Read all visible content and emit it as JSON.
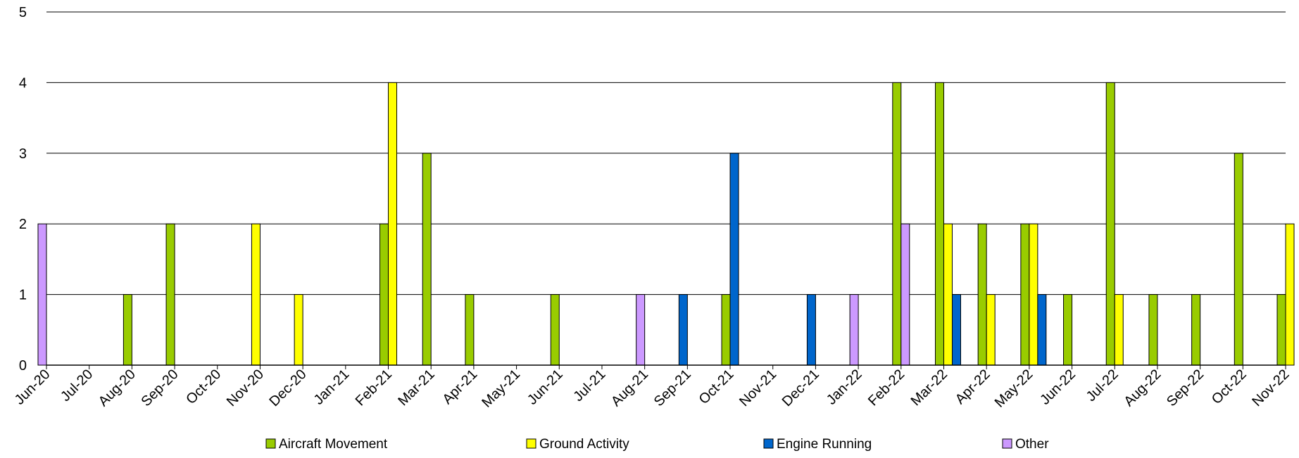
{
  "chart_data": {
    "type": "bar",
    "categories": [
      "Jun-20",
      "Jul-20",
      "Aug-20",
      "Sep-20",
      "Oct-20",
      "Nov-20",
      "Dec-20",
      "Jan-21",
      "Feb-21",
      "Mar-21",
      "Apr-21",
      "May-21",
      "Jun-21",
      "Jul-21",
      "Aug-21",
      "Sep-21",
      "Oct-21",
      "Nov-21",
      "Dec-21",
      "Jan-22",
      "Feb-22",
      "Mar-22",
      "Apr-22",
      "May-22",
      "Jun-22",
      "Jul-22",
      "Aug-22",
      "Sep-22",
      "Oct-22",
      "Nov-22"
    ],
    "series": [
      {
        "name": "Aircraft Movement",
        "color": "#99cc00",
        "values": [
          0,
          0,
          1,
          2,
          0,
          0,
          0,
          0,
          2,
          3,
          1,
          0,
          1,
          0,
          0,
          0,
          1,
          0,
          0,
          0,
          4,
          4,
          2,
          2,
          1,
          4,
          1,
          1,
          3,
          1
        ]
      },
      {
        "name": "Ground Activity",
        "color": "#ffff00",
        "values": [
          0,
          0,
          0,
          0,
          0,
          2,
          1,
          0,
          4,
          0,
          0,
          0,
          0,
          0,
          0,
          0,
          0,
          0,
          0,
          0,
          0,
          2,
          1,
          2,
          0,
          1,
          0,
          0,
          0,
          2
        ]
      },
      {
        "name": "Engine Running",
        "color": "#0066cc",
        "values": [
          0,
          0,
          0,
          0,
          0,
          0,
          0,
          0,
          0,
          0,
          0,
          0,
          0,
          0,
          0,
          1,
          3,
          0,
          1,
          0,
          0,
          1,
          0,
          1,
          0,
          0,
          0,
          0,
          0,
          0
        ]
      },
      {
        "name": "Other",
        "color": "#cc99ff",
        "values": [
          2,
          0,
          0,
          0,
          0,
          0,
          0,
          0,
          0,
          0,
          0,
          0,
          0,
          0,
          1,
          0,
          0,
          0,
          0,
          1,
          2,
          0,
          0,
          0,
          0,
          0,
          0,
          0,
          0,
          0
        ]
      }
    ],
    "y_ticks": [
      "0",
      "1",
      "2",
      "3",
      "4",
      "5"
    ],
    "ylim": [
      0,
      5
    ],
    "grid": true,
    "legend_position": "bottom"
  }
}
